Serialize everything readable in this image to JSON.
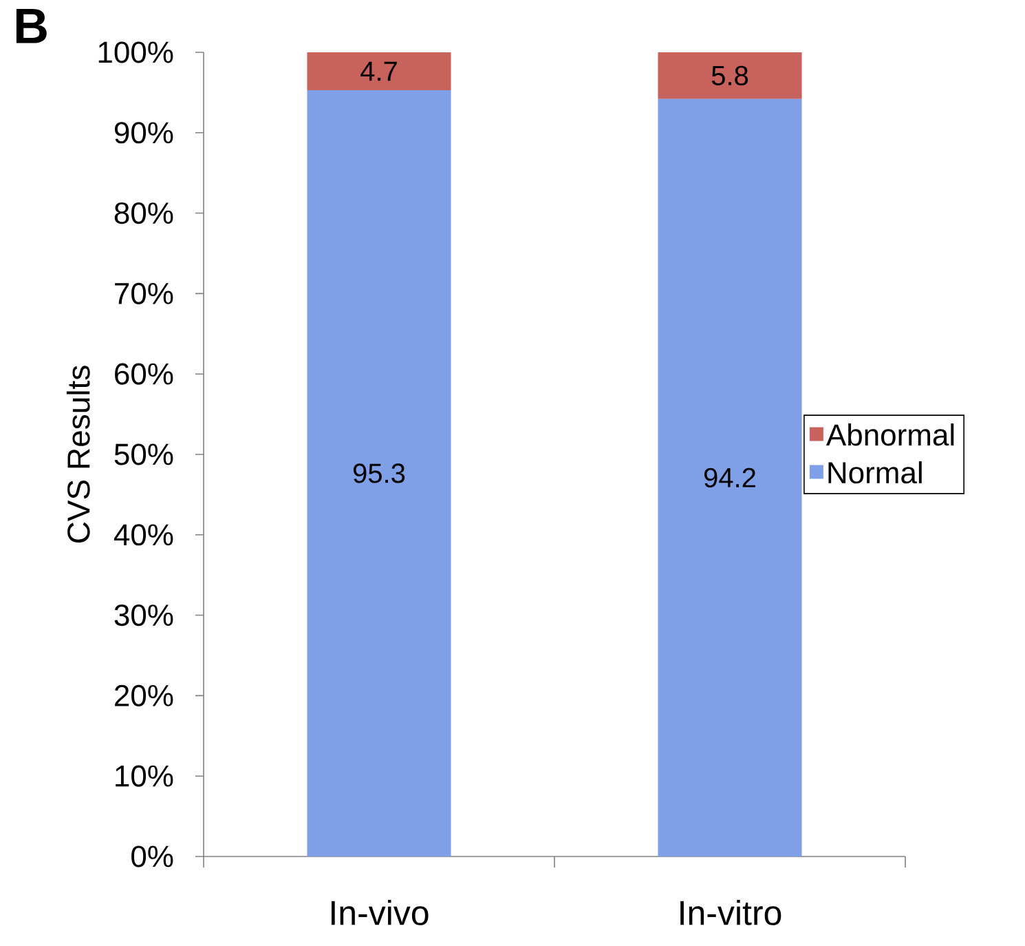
{
  "chart_data": {
    "type": "bar",
    "stacked": true,
    "ylabel": "CVS Results",
    "annotations": [
      "B"
    ],
    "categories": [
      "In-vivo",
      "In-vitro"
    ],
    "series": [
      {
        "name": "Normal",
        "color": "#7f9fe6",
        "values": [
          95.3,
          94.2
        ]
      },
      {
        "name": "Abnormal",
        "color": "#c8625c",
        "values": [
          4.7,
          5.8
        ]
      }
    ],
    "ylim": [
      0,
      100
    ],
    "yticks": [
      {
        "value": 0,
        "label": "0%"
      },
      {
        "value": 10,
        "label": "10%"
      },
      {
        "value": 20,
        "label": "20%"
      },
      {
        "value": 30,
        "label": "30%"
      },
      {
        "value": 40,
        "label": "40%"
      },
      {
        "value": 50,
        "label": "50%"
      },
      {
        "value": 60,
        "label": "60%"
      },
      {
        "value": 70,
        "label": "70%"
      },
      {
        "value": 80,
        "label": "80%"
      },
      {
        "value": 90,
        "label": "90%"
      },
      {
        "value": 100,
        "label": "100%"
      }
    ],
    "data_labels": true,
    "legend": "right",
    "grid": false
  }
}
